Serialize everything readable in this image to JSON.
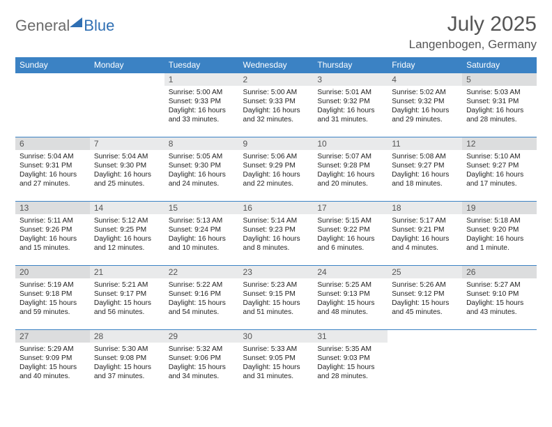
{
  "brand": {
    "part1": "General",
    "part2": "Blue"
  },
  "title": {
    "month_year": "July 2025",
    "location": "Langenbogen, Germany"
  },
  "colors": {
    "header_bg": "#3b82c4",
    "header_text": "#ffffff",
    "row_border": "#3b82c4",
    "daynum_bg": "#e9eaeb",
    "daynum_bg_weekend": "#dcddde",
    "text": "#222222",
    "title_text": "#555555"
  },
  "day_headers": [
    "Sunday",
    "Monday",
    "Tuesday",
    "Wednesday",
    "Thursday",
    "Friday",
    "Saturday"
  ],
  "weeks": [
    [
      null,
      null,
      {
        "n": "1",
        "sr": "5:00 AM",
        "ss": "9:33 PM",
        "dl": "16 hours and 33 minutes."
      },
      {
        "n": "2",
        "sr": "5:00 AM",
        "ss": "9:33 PM",
        "dl": "16 hours and 32 minutes."
      },
      {
        "n": "3",
        "sr": "5:01 AM",
        "ss": "9:32 PM",
        "dl": "16 hours and 31 minutes."
      },
      {
        "n": "4",
        "sr": "5:02 AM",
        "ss": "9:32 PM",
        "dl": "16 hours and 29 minutes."
      },
      {
        "n": "5",
        "sr": "5:03 AM",
        "ss": "9:31 PM",
        "dl": "16 hours and 28 minutes."
      }
    ],
    [
      {
        "n": "6",
        "sr": "5:04 AM",
        "ss": "9:31 PM",
        "dl": "16 hours and 27 minutes."
      },
      {
        "n": "7",
        "sr": "5:04 AM",
        "ss": "9:30 PM",
        "dl": "16 hours and 25 minutes."
      },
      {
        "n": "8",
        "sr": "5:05 AM",
        "ss": "9:30 PM",
        "dl": "16 hours and 24 minutes."
      },
      {
        "n": "9",
        "sr": "5:06 AM",
        "ss": "9:29 PM",
        "dl": "16 hours and 22 minutes."
      },
      {
        "n": "10",
        "sr": "5:07 AM",
        "ss": "9:28 PM",
        "dl": "16 hours and 20 minutes."
      },
      {
        "n": "11",
        "sr": "5:08 AM",
        "ss": "9:27 PM",
        "dl": "16 hours and 18 minutes."
      },
      {
        "n": "12",
        "sr": "5:10 AM",
        "ss": "9:27 PM",
        "dl": "16 hours and 17 minutes."
      }
    ],
    [
      {
        "n": "13",
        "sr": "5:11 AM",
        "ss": "9:26 PM",
        "dl": "16 hours and 15 minutes."
      },
      {
        "n": "14",
        "sr": "5:12 AM",
        "ss": "9:25 PM",
        "dl": "16 hours and 12 minutes."
      },
      {
        "n": "15",
        "sr": "5:13 AM",
        "ss": "9:24 PM",
        "dl": "16 hours and 10 minutes."
      },
      {
        "n": "16",
        "sr": "5:14 AM",
        "ss": "9:23 PM",
        "dl": "16 hours and 8 minutes."
      },
      {
        "n": "17",
        "sr": "5:15 AM",
        "ss": "9:22 PM",
        "dl": "16 hours and 6 minutes."
      },
      {
        "n": "18",
        "sr": "5:17 AM",
        "ss": "9:21 PM",
        "dl": "16 hours and 4 minutes."
      },
      {
        "n": "19",
        "sr": "5:18 AM",
        "ss": "9:20 PM",
        "dl": "16 hours and 1 minute."
      }
    ],
    [
      {
        "n": "20",
        "sr": "5:19 AM",
        "ss": "9:18 PM",
        "dl": "15 hours and 59 minutes."
      },
      {
        "n": "21",
        "sr": "5:21 AM",
        "ss": "9:17 PM",
        "dl": "15 hours and 56 minutes."
      },
      {
        "n": "22",
        "sr": "5:22 AM",
        "ss": "9:16 PM",
        "dl": "15 hours and 54 minutes."
      },
      {
        "n": "23",
        "sr": "5:23 AM",
        "ss": "9:15 PM",
        "dl": "15 hours and 51 minutes."
      },
      {
        "n": "24",
        "sr": "5:25 AM",
        "ss": "9:13 PM",
        "dl": "15 hours and 48 minutes."
      },
      {
        "n": "25",
        "sr": "5:26 AM",
        "ss": "9:12 PM",
        "dl": "15 hours and 45 minutes."
      },
      {
        "n": "26",
        "sr": "5:27 AM",
        "ss": "9:10 PM",
        "dl": "15 hours and 43 minutes."
      }
    ],
    [
      {
        "n": "27",
        "sr": "5:29 AM",
        "ss": "9:09 PM",
        "dl": "15 hours and 40 minutes."
      },
      {
        "n": "28",
        "sr": "5:30 AM",
        "ss": "9:08 PM",
        "dl": "15 hours and 37 minutes."
      },
      {
        "n": "29",
        "sr": "5:32 AM",
        "ss": "9:06 PM",
        "dl": "15 hours and 34 minutes."
      },
      {
        "n": "30",
        "sr": "5:33 AM",
        "ss": "9:05 PM",
        "dl": "15 hours and 31 minutes."
      },
      {
        "n": "31",
        "sr": "5:35 AM",
        "ss": "9:03 PM",
        "dl": "15 hours and 28 minutes."
      },
      null,
      null
    ]
  ],
  "labels": {
    "sunrise": "Sunrise:",
    "sunset": "Sunset:",
    "daylight": "Daylight:"
  }
}
